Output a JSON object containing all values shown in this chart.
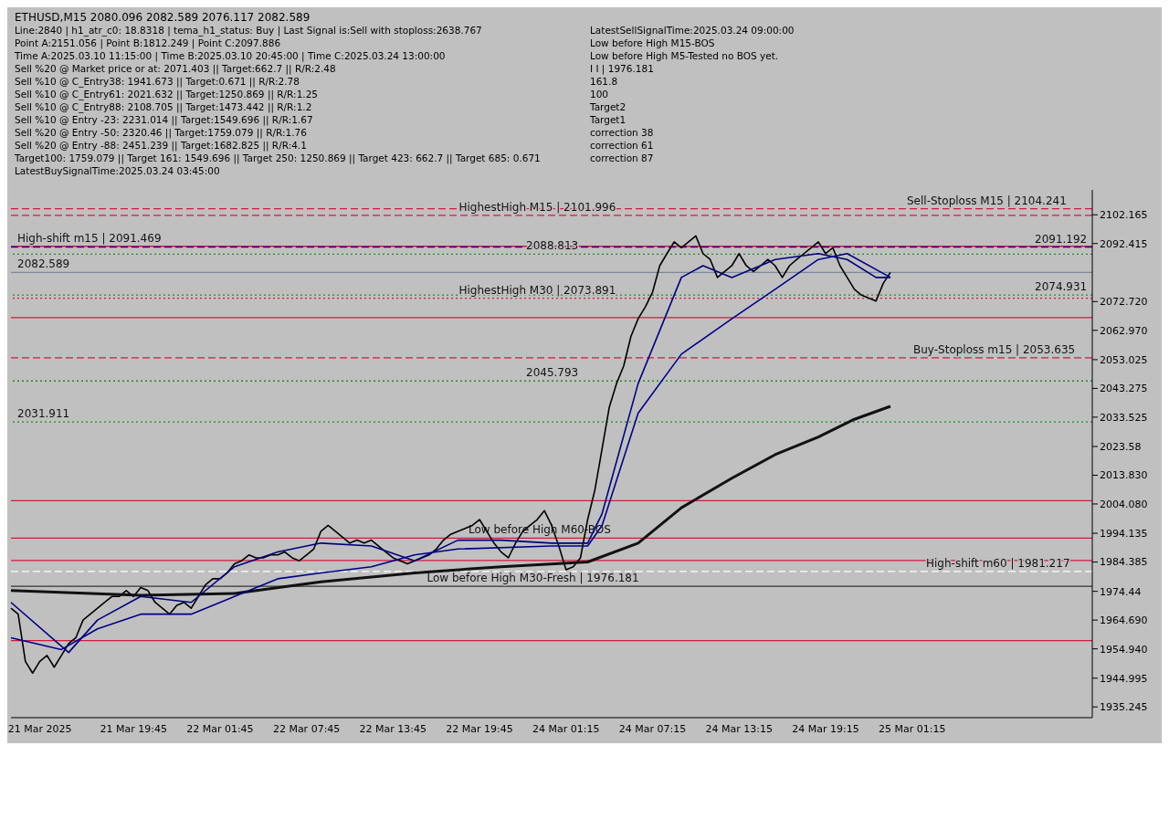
{
  "chart_data": {
    "type": "line",
    "title": "ETHUSD,M15  2080.096 2082.589 2076.117 2082.589",
    "categories": [
      null,
      null,
      null,
      null,
      "21 Mar 2025",
      null,
      null,
      null,
      null,
      null,
      null,
      null,
      null,
      null,
      null,
      null,
      null,
      "21 Mar 19:45",
      null,
      null,
      null,
      null,
      null,
      null,
      null,
      null,
      null,
      null,
      null,
      "22 Mar 01:45",
      null,
      null,
      null,
      null,
      null,
      null,
      null,
      null,
      null,
      null,
      null,
      "22 Mar 07:45",
      null,
      null,
      null,
      null,
      null,
      null,
      null,
      null,
      null,
      null,
      null,
      "22 Mar 13:45",
      null,
      null,
      null,
      null,
      null,
      null,
      null,
      null,
      null,
      null,
      null,
      "22 Mar 19:45",
      null,
      null,
      null,
      null,
      null,
      null,
      null,
      null,
      null,
      null,
      null,
      "24 Mar 01:15",
      null,
      null,
      null,
      null,
      null,
      null,
      null,
      null,
      null,
      null,
      null,
      "24 Mar 07:15",
      null,
      null,
      null,
      null,
      null,
      null,
      null,
      null,
      null,
      null,
      null,
      "24 Mar 13:15",
      null,
      null,
      null,
      null,
      null,
      null,
      null,
      null,
      null,
      null,
      null,
      "24 Mar 19:15",
      null,
      null,
      null,
      null,
      null,
      null,
      null,
      null,
      null,
      null,
      null,
      "25 Mar 01:15",
      null,
      null,
      null,
      null,
      null,
      null,
      null,
      null,
      null,
      null,
      null,
      null,
      null,
      null,
      null,
      null,
      null,
      null,
      null,
      null,
      null,
      null,
      null,
      null,
      null
    ],
    "series": [
      {
        "color": "#000000",
        "values": [
          1968.7,
          1966.7,
          1950.7,
          1946.7,
          1950.7,
          1952.7,
          1948.7,
          1952.7,
          1956.7,
          1958.7,
          1964.7,
          1966.7,
          1968.7,
          1970.7,
          1972.7,
          1972.7,
          1974.7,
          1972.7,
          1975.7,
          1974.7,
          1970.7,
          1968.7,
          1966.7,
          1969.7,
          1970.7,
          1968.7,
          1972.7,
          1976.7,
          1978.7,
          1978.7,
          1980.7,
          1983.8,
          1984.8,
          1986.8,
          1985.8,
          1985.8,
          1986.8,
          1986.8,
          1987.8,
          1985.8,
          1984.8,
          1986.8,
          1988.8,
          1994.8,
          1996.8,
          1994.8,
          1992.8,
          1990.8,
          1991.8,
          1990.8,
          1991.8,
          1989.8,
          1987.8,
          1985.8,
          1984.8,
          1983.8,
          1984.8,
          1985.8,
          1986.8,
          1988.8,
          1991.8,
          1993.8,
          1994.8,
          1995.8,
          1996.8,
          1998.8,
          1994.8,
          1990.8,
          1987.8,
          1985.8,
          1990.8,
          1994.8,
          1996.8,
          1998.8,
          2001.8,
          1996.8,
          1989.8,
          1981.8,
          1982.8,
          1985.8,
          1998.8,
          2008.8,
          2022.8,
          2036.9,
          2044.9,
          2050.9,
          2060.9,
          2066.9,
          2070.9,
          2075.9,
          2084.9,
          2089.0,
          2093.0,
          2091.0,
          2093.0,
          2095.0,
          2089.0,
          2087.0,
          2080.9,
          2082.9,
          2084.9,
          2089.0,
          2084.9,
          2082.9,
          2084.9,
          2087.0,
          2084.9,
          2080.9,
          2084.9,
          2087.0,
          2089.0,
          2091.0,
          2093.0,
          2089.0,
          2091.0,
          2084.9,
          2080.9,
          2076.9,
          2074.9,
          2073.9,
          2072.9,
          2078.9,
          2082.6,
          null,
          null,
          null,
          null,
          null,
          null,
          null,
          null,
          null,
          null,
          null,
          null,
          null,
          null,
          null,
          null,
          null,
          null,
          null,
          null,
          null,
          null,
          null,
          null,
          null,
          null,
          null,
          null
        ]
      },
      {
        "color": "#111111",
        "values": [
          1974.7,
          null,
          null,
          null,
          null,
          null,
          null,
          null,
          null,
          null,
          null,
          null,
          null,
          null,
          null,
          null,
          null,
          null,
          1973.1,
          null,
          null,
          null,
          null,
          null,
          null,
          null,
          null,
          null,
          null,
          null,
          null,
          1973.7,
          null,
          null,
          null,
          null,
          null,
          null,
          null,
          null,
          null,
          null,
          null,
          1977.7,
          null,
          null,
          null,
          null,
          null,
          null,
          null,
          null,
          null,
          null,
          null,
          null,
          1980.7,
          null,
          null,
          null,
          null,
          null,
          null,
          null,
          null,
          null,
          null,
          null,
          1982.8,
          null,
          null,
          null,
          null,
          null,
          null,
          null,
          null,
          null,
          null,
          null,
          1984.4,
          null,
          null,
          null,
          null,
          null,
          null,
          1990.8,
          null,
          null,
          null,
          null,
          null,
          2002.8,
          null,
          null,
          null,
          null,
          null,
          null,
          2012.8,
          null,
          null,
          null,
          null,
          null,
          2020.8,
          null,
          null,
          null,
          null,
          null,
          2026.8,
          null,
          null,
          null,
          null,
          2032.8,
          null,
          null,
          null,
          null,
          2037.2,
          null,
          null,
          null,
          null,
          null,
          null,
          null,
          null,
          null,
          null,
          null,
          null,
          null,
          null,
          null,
          null,
          null,
          null,
          null,
          null,
          null,
          null,
          null,
          null,
          null,
          null,
          null,
          null
        ]
      },
      {
        "color": "#000080",
        "values": [
          1970.7,
          null,
          null,
          null,
          null,
          null,
          null,
          null,
          1953.7,
          null,
          null,
          null,
          1964.7,
          null,
          null,
          null,
          null,
          null,
          1972.7,
          null,
          null,
          null,
          null,
          null,
          null,
          1970.7,
          null,
          null,
          null,
          null,
          null,
          1982.8,
          null,
          null,
          null,
          null,
          null,
          1987.8,
          null,
          null,
          null,
          null,
          null,
          1990.8,
          null,
          null,
          null,
          null,
          null,
          null,
          1989.8,
          null,
          null,
          null,
          null,
          null,
          1984.8,
          null,
          null,
          null,
          null,
          null,
          1991.8,
          null,
          null,
          null,
          null,
          null,
          1991.8,
          null,
          null,
          null,
          null,
          null,
          null,
          1990.8,
          null,
          null,
          null,
          null,
          1990.8,
          null,
          2000.8,
          null,
          null,
          null,
          null,
          2044.9,
          null,
          null,
          null,
          null,
          null,
          2080.9,
          null,
          null,
          2084.9,
          null,
          null,
          null,
          2080.9,
          null,
          null,
          null,
          null,
          null,
          2087.0,
          null,
          null,
          null,
          null,
          null,
          2089.0,
          null,
          null,
          null,
          2087.0,
          null,
          null,
          null,
          2080.9,
          null,
          2080.9,
          null,
          null,
          null,
          null,
          null,
          null,
          null,
          null,
          null,
          null,
          null,
          null,
          null,
          null,
          null,
          null,
          null,
          null,
          null,
          null,
          null,
          null,
          null,
          null,
          null,
          null,
          null,
          null
        ]
      },
      {
        "color": "#00008b",
        "values": [
          1958.7,
          null,
          null,
          null,
          null,
          null,
          null,
          1954.7,
          null,
          null,
          null,
          null,
          1961.7,
          null,
          null,
          null,
          null,
          null,
          1966.7,
          null,
          null,
          null,
          null,
          null,
          null,
          1966.7,
          null,
          null,
          null,
          null,
          null,
          1972.7,
          null,
          null,
          null,
          null,
          null,
          1978.7,
          null,
          null,
          null,
          null,
          null,
          1980.7,
          null,
          null,
          null,
          null,
          null,
          null,
          1982.8,
          null,
          null,
          null,
          null,
          null,
          1986.8,
          null,
          null,
          null,
          null,
          null,
          1988.8,
          null,
          null,
          null,
          null,
          null,
          null,
          null,
          null,
          null,
          null,
          null,
          null,
          1989.8,
          null,
          null,
          null,
          null,
          1989.8,
          null,
          1996.8,
          null,
          null,
          null,
          null,
          2034.9,
          null,
          null,
          null,
          null,
          null,
          2054.9,
          null,
          null,
          null,
          null,
          null,
          null,
          2066.9,
          null,
          null,
          null,
          null,
          null,
          2076.9,
          null,
          null,
          null,
          null,
          null,
          2087.0,
          null,
          null,
          null,
          2089.0,
          null,
          null,
          null,
          null,
          null,
          2080.9,
          null,
          null,
          null,
          null,
          null,
          null,
          null,
          null,
          null,
          null,
          null,
          null,
          null,
          null,
          null,
          null,
          null,
          null,
          null,
          null,
          null,
          null,
          null,
          null,
          null,
          null,
          null,
          null
        ]
      }
    ],
    "ylim": [
      1931.6,
      2110.6
    ],
    "yticks": [
      1935.245,
      1944.995,
      {
        "value": 1954.94,
        "label": "1954.940"
      },
      {
        "value": 1964.69,
        "label": "1964.690"
      },
      1974.44,
      1984.385,
      1994.135,
      {
        "value": 2004.08,
        "label": "2004.080"
      },
      {
        "value": 2013.83,
        "label": "2013.830"
      },
      2023.58,
      2033.525,
      2043.275,
      2053.025,
      {
        "value": 2062.97,
        "label": "2062.970"
      },
      {
        "value": 2072.72,
        "label": "2072.720"
      },
      2092.415,
      2102.165
    ],
    "ref_lines": [
      {
        "axis": "y",
        "value": 2104.241,
        "label": "Sell-Stoploss M15 | 2104.241",
        "color": "#dc143c",
        "line_style": "dashed"
      },
      {
        "axis": "y",
        "value": 2101.996,
        "label": "HighestHigh    M15 | 2101.996",
        "color": "#dc143c",
        "line_style": "dashed"
      },
      {
        "axis": "y",
        "value": 2091.469,
        "label": "High-shift m15 | 2091.469",
        "color": "#dc143c",
        "line_style": "solid"
      },
      {
        "axis": "y",
        "value": 2091.192,
        "label": "2091.192",
        "color": "#0000cd",
        "line_style": "dashed"
      },
      {
        "axis": "y",
        "value": 2088.813,
        "label": "2088.813",
        "color": "#228b22",
        "line_style": "dotted"
      },
      {
        "axis": "y",
        "value": 2082.589,
        "label": "2082.589",
        "color": "#778899",
        "line_style": "solid"
      },
      {
        "axis": "y",
        "value": 2074.931,
        "label": "2074.931",
        "color": "#228b22",
        "line_style": "dotted"
      },
      {
        "axis": "y",
        "value": 2073.891,
        "label": "HighestHigh    M30 | 2073.891",
        "color": "#dc143c",
        "line_style": "dotted"
      },
      {
        "axis": "y",
        "value": 2067.3,
        "color": "#dc143c",
        "line_style": "solid"
      },
      {
        "axis": "y",
        "value": 2053.635,
        "label": "Buy-Stoploss m15 | 2053.635",
        "color": "#dc143c",
        "line_style": "dashed"
      },
      {
        "axis": "y",
        "value": 2045.793,
        "label": "2045.793",
        "color": "#228b22",
        "line_style": "dotted"
      },
      {
        "axis": "y",
        "value": 2031.911,
        "label": "2031.911",
        "color": "#228b22",
        "line_style": "dotted"
      },
      {
        "axis": "y",
        "value": 2005.2,
        "color": "#dc143c",
        "line_style": "solid"
      },
      {
        "axis": "y",
        "value": 1992.5,
        "label": "Low before High    M60-BOS",
        "color": "#dc143c",
        "line_style": "solid"
      },
      {
        "axis": "y",
        "value": 1984.9,
        "color": "#dc143c",
        "line_style": "solid"
      },
      {
        "axis": "y",
        "value": 1981.217,
        "label": "High-shift m60 | 1981.217",
        "color": "#ffffff",
        "line_style": "dashed"
      },
      {
        "axis": "y",
        "value": 1976.181,
        "label": "Low before High    M30-Fresh | 1976.181",
        "color": "#333333",
        "line_style": "solid"
      },
      {
        "axis": "y",
        "value": 1957.7,
        "color": "#dc143c",
        "line_style": "solid"
      }
    ],
    "annotations": [
      "Line:2840 | h1_atr_c0: 18.8318 | tema_h1_status: Buy | Last Signal is:Sell with stoploss:2638.767",
      "Point A:2151.056 | Point B:1812.249 | Point C:2097.886",
      "Time A:2025.03.10 11:15:00 | Time B:2025.03.10 20:45:00 | Time C:2025.03.24 13:00:00",
      "Sell %20 @ Market price or at: 2071.403 || Target:662.7 || R/R:2.48",
      "Sell %10 @ C_Entry38: 1941.673 || Target:0.671 || R/R:2.78",
      "Sell %10 @ C_Entry61: 2021.632 || Target:1250.869 || R/R:1.25",
      "Sell %10 @ C_Entry88: 2108.705 || Target:1473.442 || R/R:1.2",
      "Sell %10 @ Entry -23: 2231.014 || Target:1549.696 || R/R:1.67",
      "Sell %20 @ Entry -50: 2320.46 || Target:1759.079 || R/R:1.76",
      "Sell %20 @ Entry -88: 2451.239 || Target:1682.825 || R/R:4.1",
      "Target100: 1759.079 || Target 161: 1549.696 || Target 250: 1250.869 || Target 423: 662.7 || Target 685: 0.671",
      "LatestBuySignalTime:2025.03.24 03:45:00",
      "LatestSellSignalTime:2025.03.24 09:00:00",
      "Low before High    M15-BOS",
      "Low before High    M5-Tested no BOS yet.",
      "I I | 1976.181",
      "161.8",
      "100",
      "Target2",
      "Target1",
      "correction 38",
      "correction 61",
      "correction 87"
    ],
    "grid": false,
    "legend": false
  }
}
